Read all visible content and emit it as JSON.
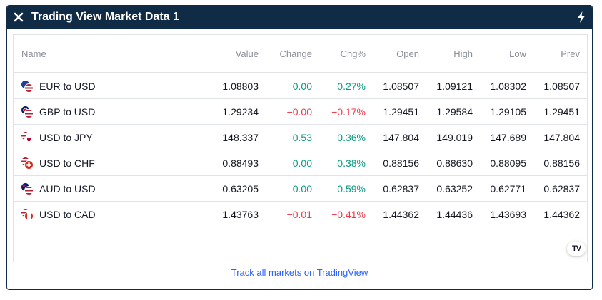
{
  "title": "Trading View Market Data 1",
  "icons": {
    "close": "close-icon",
    "bolt": "lightning-bolt-icon",
    "brand": "tradingview-logo"
  },
  "brand_mark": "TV",
  "colors": {
    "header_bg": "#0f2b46",
    "positive": "#089981",
    "negative": "#f23645",
    "link": "#2962ff"
  },
  "columns": {
    "name": "Name",
    "value": "Value",
    "change": "Change",
    "chg_pct": "Chg%",
    "open": "Open",
    "high": "High",
    "low": "Low",
    "prev": "Prev"
  },
  "rows": [
    {
      "name": "EUR to USD",
      "value": "1.08803",
      "change": "0.00",
      "chg_pct": "0.27%",
      "open": "1.08507",
      "high": "1.09121",
      "low": "1.08302",
      "prev": "1.08507"
    },
    {
      "name": "GBP to USD",
      "value": "1.29234",
      "change": "−0.00",
      "chg_pct": "−0.17%",
      "open": "1.29451",
      "high": "1.29584",
      "low": "1.29105",
      "prev": "1.29451"
    },
    {
      "name": "USD to JPY",
      "value": "148.337",
      "change": "0.53",
      "chg_pct": "0.36%",
      "open": "147.804",
      "high": "149.019",
      "low": "147.689",
      "prev": "147.804"
    },
    {
      "name": "USD to CHF",
      "value": "0.88493",
      "change": "0.00",
      "chg_pct": "0.38%",
      "open": "0.88156",
      "high": "0.88630",
      "low": "0.88095",
      "prev": "0.88156"
    },
    {
      "name": "AUD to USD",
      "value": "0.63205",
      "change": "0.00",
      "chg_pct": "0.59%",
      "open": "0.62837",
      "high": "0.63252",
      "low": "0.62771",
      "prev": "0.62837"
    },
    {
      "name": "USD to CAD",
      "value": "1.43763",
      "change": "−0.01",
      "chg_pct": "−0.41%",
      "open": "1.44362",
      "high": "1.44436",
      "low": "1.43693",
      "prev": "1.44362"
    }
  ],
  "footer_link": "Track all markets on TradingView"
}
